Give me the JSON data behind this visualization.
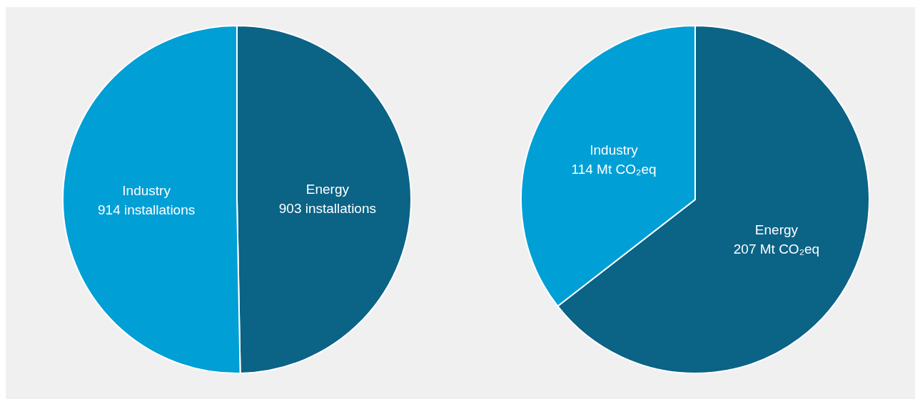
{
  "chart_data": [
    {
      "type": "pie",
      "categories": [
        "Energy",
        "Industry"
      ],
      "values": [
        903,
        914
      ],
      "colors": [
        "#0b6386",
        "#009fd5"
      ],
      "value_labels": [
        "903 installations",
        "914 installations"
      ]
    },
    {
      "type": "pie",
      "categories": [
        "Energy",
        "Industry"
      ],
      "values": [
        207,
        114
      ],
      "colors": [
        "#0b6386",
        "#009fd5"
      ],
      "value_labels": [
        "207 Mt CO₂eq",
        "114 Mt CO₂eq"
      ]
    }
  ]
}
